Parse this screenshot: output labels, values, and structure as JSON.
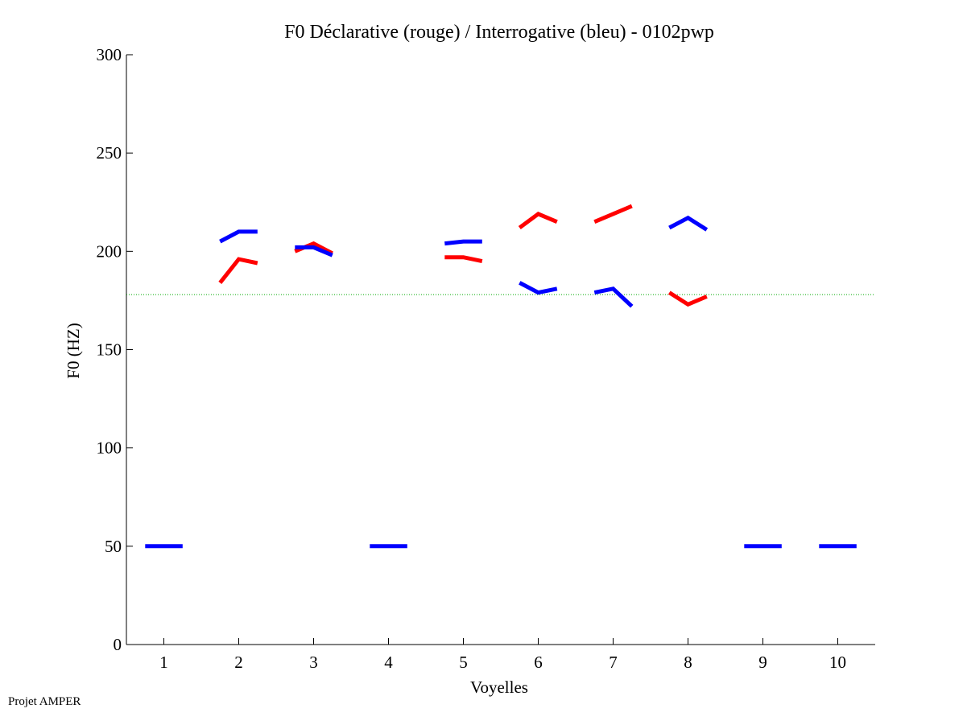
{
  "footer": "Projet AMPER",
  "chart_data": {
    "type": "line",
    "title": "F0 Déclarative (rouge) / Interrogative (bleu) - 0102pwp",
    "xlabel": "Voyelles",
    "ylabel": "F0 (HZ)",
    "xlim": [
      0.5,
      10.5
    ],
    "ylim": [
      0,
      300
    ],
    "xticks": [
      1,
      2,
      3,
      4,
      5,
      6,
      7,
      8,
      9,
      10
    ],
    "yticks": [
      0,
      50,
      100,
      150,
      200,
      250,
      300
    ],
    "reference_line": {
      "y": 178,
      "color": "#00aa00",
      "style": "dotted"
    },
    "series": [
      {
        "color": "#ff0000",
        "segments": [
          {
            "vowel": 2,
            "x": [
              1.75,
              2.0,
              2.25
            ],
            "y": [
              184,
              196,
              194
            ]
          },
          {
            "vowel": 3,
            "x": [
              2.75,
              3.0,
              3.25
            ],
            "y": [
              200,
              204,
              199
            ]
          },
          {
            "vowel": 5,
            "x": [
              4.75,
              5.0,
              5.25
            ],
            "y": [
              197,
              197,
              195
            ]
          },
          {
            "vowel": 6,
            "x": [
              5.75,
              6.0,
              6.25
            ],
            "y": [
              212,
              219,
              215
            ]
          },
          {
            "vowel": 7,
            "x": [
              6.75,
              7.0,
              7.25
            ],
            "y": [
              215,
              219,
              223
            ]
          },
          {
            "vowel": 8,
            "x": [
              7.75,
              8.0,
              8.25
            ],
            "y": [
              179,
              173,
              177
            ]
          }
        ]
      },
      {
        "color": "#0000ff",
        "segments": [
          {
            "vowel": 1,
            "x": [
              0.75,
              1.0,
              1.25
            ],
            "y": [
              50,
              50,
              50
            ]
          },
          {
            "vowel": 2,
            "x": [
              1.75,
              2.0,
              2.25
            ],
            "y": [
              205,
              210,
              210
            ]
          },
          {
            "vowel": 3,
            "x": [
              2.75,
              3.0,
              3.25
            ],
            "y": [
              202,
              202,
              198
            ]
          },
          {
            "vowel": 4,
            "x": [
              3.75,
              4.0,
              4.25
            ],
            "y": [
              50,
              50,
              50
            ]
          },
          {
            "vowel": 5,
            "x": [
              4.75,
              5.0,
              5.25
            ],
            "y": [
              204,
              205,
              205
            ]
          },
          {
            "vowel": 6,
            "x": [
              5.75,
              6.0,
              6.25
            ],
            "y": [
              184,
              179,
              181
            ]
          },
          {
            "vowel": 7,
            "x": [
              6.75,
              7.0,
              7.25
            ],
            "y": [
              179,
              181,
              172
            ]
          },
          {
            "vowel": 8,
            "x": [
              7.75,
              8.0,
              8.25
            ],
            "y": [
              212,
              217,
              211
            ]
          },
          {
            "vowel": 9,
            "x": [
              8.75,
              9.0,
              9.25
            ],
            "y": [
              50,
              50,
              50
            ]
          },
          {
            "vowel": 10,
            "x": [
              9.75,
              10.0,
              10.25
            ],
            "y": [
              50,
              50,
              50
            ]
          }
        ]
      }
    ]
  }
}
